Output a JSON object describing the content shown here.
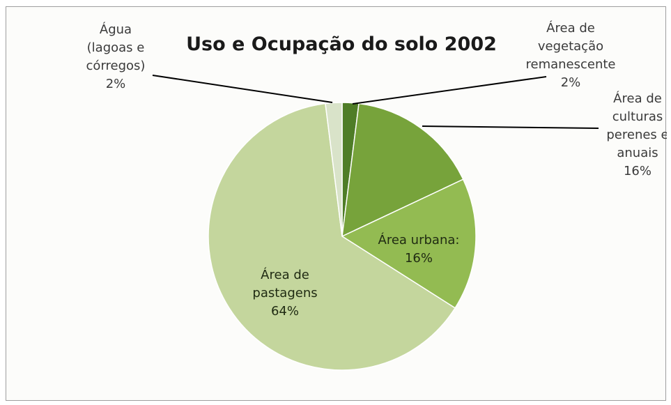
{
  "chart_data": {
    "type": "pie",
    "title": "Uso e Ocupação do solo  2002",
    "slices": [
      {
        "id": "vegetacao",
        "label_lines": [
          "Área de",
          "vegetação",
          "remanescente",
          "2%"
        ],
        "value": 2,
        "color": "#4f7d27"
      },
      {
        "id": "culturas",
        "label_lines": [
          "Área de",
          "culturas",
          "perenes e",
          "anuais",
          "16%"
        ],
        "value": 16,
        "color": "#77a33b"
      },
      {
        "id": "urbana",
        "label_lines": [
          "Área urbana:",
          "16%"
        ],
        "value": 16,
        "color": "#93bb52"
      },
      {
        "id": "pastagens",
        "label_lines": [
          "Área de",
          "pastagens",
          "64%"
        ],
        "value": 64,
        "color": "#c4d69d"
      },
      {
        "id": "agua",
        "label_lines": [
          "Água",
          "(lagoas e",
          "córregos)",
          "2%"
        ],
        "value": 2,
        "color": "#d9e3c9"
      }
    ]
  }
}
